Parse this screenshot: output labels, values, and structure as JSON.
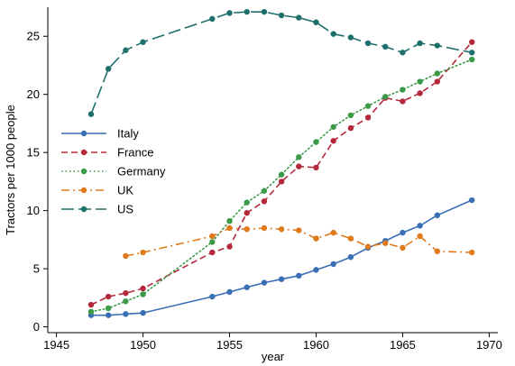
{
  "chart_data": {
    "type": "line",
    "title": "",
    "xlabel": "year",
    "ylabel": "Tractors per 1000 people",
    "xlim": [
      1944.5,
      1970.5
    ],
    "ylim": [
      -0.5,
      27.5
    ],
    "x_ticks": [
      1945,
      1950,
      1955,
      1960,
      1965,
      1970
    ],
    "y_ticks": [
      0,
      5,
      10,
      15,
      20,
      25
    ],
    "grid": false,
    "legend_position": "left-middle",
    "series": [
      {
        "name": "Italy",
        "color": "#3a6fb5",
        "style": "solid",
        "x": [
          1947,
          1948,
          1949,
          1950,
          1954,
          1955,
          1956,
          1957,
          1958,
          1959,
          1960,
          1961,
          1962,
          1963,
          1964,
          1965,
          1966,
          1967,
          1969
        ],
        "y": [
          1.0,
          1.0,
          1.1,
          1.2,
          2.6,
          3.0,
          3.4,
          3.8,
          4.1,
          4.4,
          4.9,
          5.4,
          6.0,
          6.8,
          7.4,
          8.1,
          8.7,
          9.6,
          10.9
        ]
      },
      {
        "name": "France",
        "color": "#b5283b",
        "style": "dashed",
        "x": [
          1947,
          1948,
          1949,
          1950,
          1954,
          1955,
          1956,
          1957,
          1958,
          1959,
          1960,
          1961,
          1962,
          1963,
          1964,
          1965,
          1966,
          1967,
          1969
        ],
        "y": [
          1.9,
          2.6,
          2.9,
          3.3,
          6.4,
          6.9,
          9.8,
          10.8,
          12.5,
          13.8,
          13.7,
          16.0,
          17.1,
          18.0,
          19.7,
          19.4,
          20.1,
          21.1,
          24.5
        ]
      },
      {
        "name": "Germany",
        "color": "#3a9a48",
        "style": "dotted",
        "x": [
          1947,
          1948,
          1949,
          1950,
          1954,
          1955,
          1956,
          1957,
          1958,
          1959,
          1960,
          1961,
          1962,
          1963,
          1964,
          1965,
          1966,
          1967,
          1969
        ],
        "y": [
          1.3,
          1.6,
          2.2,
          2.8,
          7.3,
          9.1,
          10.7,
          11.7,
          13.1,
          14.6,
          15.9,
          17.2,
          18.2,
          19.0,
          19.8,
          20.4,
          21.1,
          21.8,
          23.0
        ]
      },
      {
        "name": "UK",
        "color": "#e07a1c",
        "style": "dashdot",
        "x": [
          1949,
          1950,
          1954,
          1955,
          1956,
          1957,
          1958,
          1959,
          1960,
          1961,
          1962,
          1963,
          1964,
          1965,
          1966,
          1967,
          1969
        ],
        "y": [
          6.1,
          6.4,
          7.8,
          8.5,
          8.4,
          8.5,
          8.4,
          8.3,
          7.6,
          8.1,
          7.6,
          6.9,
          7.2,
          6.8,
          7.8,
          6.5,
          6.4
        ]
      },
      {
        "name": "US",
        "color": "#1d6f6c",
        "style": "longdash",
        "x": [
          1947,
          1948,
          1949,
          1950,
          1954,
          1955,
          1956,
          1957,
          1958,
          1959,
          1960,
          1961,
          1962,
          1963,
          1964,
          1965,
          1966,
          1967,
          1969
        ],
        "y": [
          18.3,
          22.2,
          23.8,
          24.5,
          26.5,
          27.0,
          27.1,
          27.1,
          26.8,
          26.6,
          26.2,
          25.2,
          24.9,
          24.4,
          24.1,
          23.6,
          24.4,
          24.2,
          23.6
        ]
      }
    ]
  }
}
